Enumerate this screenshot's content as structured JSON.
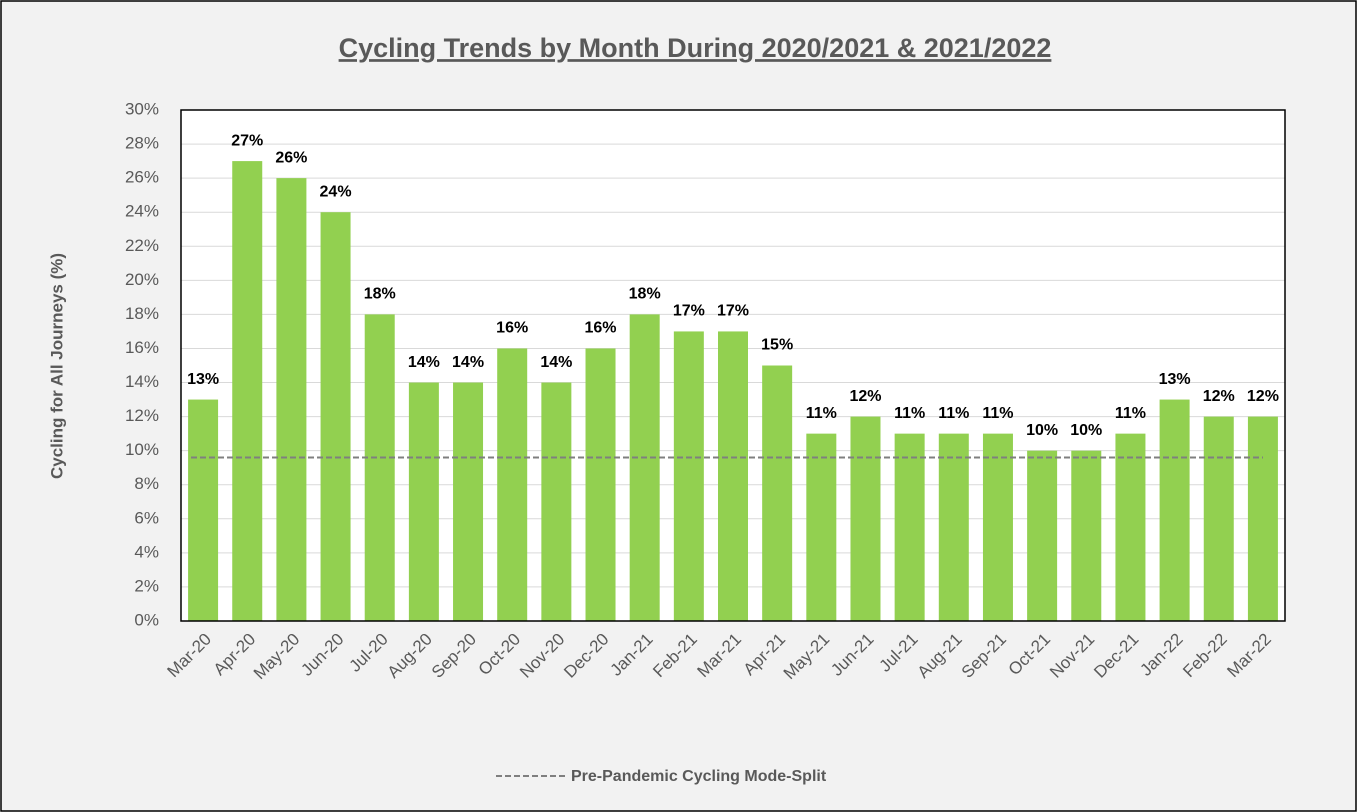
{
  "chart_data": {
    "type": "bar",
    "title": "Cycling Trends by Month During 2020/2021 & 2021/2022",
    "y_label": "Cycling for All Journeys (%)",
    "categories": [
      "Mar-20",
      "Apr-20",
      "May-20",
      "Jun-20",
      "Jul-20",
      "Aug-20",
      "Sep-20",
      "Oct-20",
      "Nov-20",
      "Dec-20",
      "Jan-21",
      "Feb-21",
      "Mar-21",
      "Apr-21",
      "May-21",
      "Jun-21",
      "Jul-21",
      "Aug-21",
      "Sep-21",
      "Oct-21",
      "Nov-21",
      "Dec-21",
      "Jan-22",
      "Feb-22",
      "Mar-22"
    ],
    "values": [
      13,
      27,
      26,
      24,
      18,
      14,
      14,
      16,
      14,
      16,
      18,
      17,
      17,
      15,
      11,
      12,
      11,
      11,
      11,
      10,
      10,
      11,
      13,
      12,
      12
    ],
    "value_labels": [
      "13%",
      "27%",
      "26%",
      "24%",
      "18%",
      "14%",
      "14%",
      "16%",
      "14%",
      "16%",
      "18%",
      "17%",
      "17%",
      "15%",
      "11%",
      "12%",
      "11%",
      "11%",
      "11%",
      "10%",
      "10%",
      "11%",
      "13%",
      "12%",
      "12%"
    ],
    "color": "#92d050",
    "reference_line": {
      "name": "Pre-Pandemic Cycling Mode-Split",
      "value": 9.6,
      "color": "#7f7f7f"
    },
    "ylim": [
      0,
      30
    ],
    "yticks": [
      {
        "value": 0,
        "label": "0%"
      },
      {
        "value": 2,
        "label": "2%"
      },
      {
        "value": 4,
        "label": "4%"
      },
      {
        "value": 6,
        "label": "6%"
      },
      {
        "value": 8,
        "label": "8%"
      },
      {
        "value": 10,
        "label": "10%"
      },
      {
        "value": 12,
        "label": "12%"
      },
      {
        "value": 14,
        "label": "14%"
      },
      {
        "value": 16,
        "label": "16%"
      },
      {
        "value": 18,
        "label": "18%"
      },
      {
        "value": 20,
        "label": "20%"
      },
      {
        "value": 22,
        "label": "22%"
      },
      {
        "value": 24,
        "label": "24%"
      },
      {
        "value": 26,
        "label": "26%"
      },
      {
        "value": 28,
        "label": "28%"
      },
      {
        "value": 30,
        "label": "30%"
      }
    ],
    "grid": true
  }
}
